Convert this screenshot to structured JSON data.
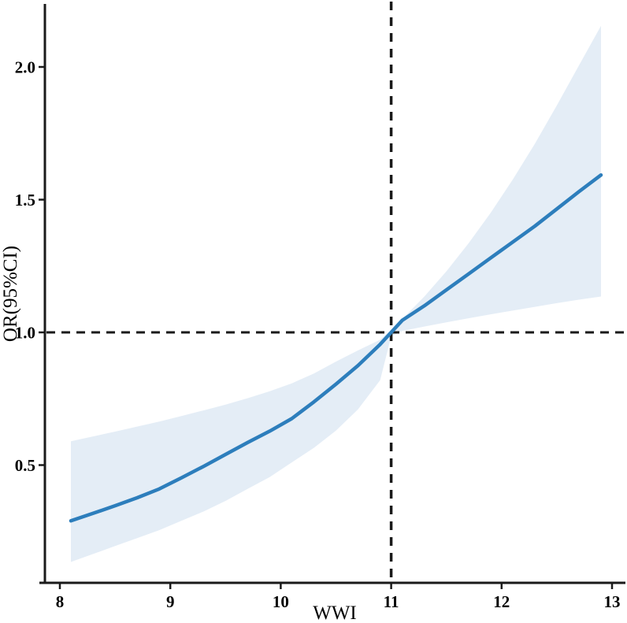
{
  "figure": {
    "background": "#ffffff",
    "description": "Restricted cubic spline plot of odds ratio with 95% confidence band versus WWI"
  },
  "chart_data": {
    "type": "line",
    "title": "",
    "xlabel": "WWI",
    "ylabel": "OR(95%CI)",
    "grid": false,
    "legend": "none",
    "xlim": [
      7.86,
      13.13
    ],
    "ylim": [
      0.05,
      2.25
    ],
    "x_ticks": [
      8,
      9,
      10,
      11,
      12,
      13
    ],
    "x_tick_labels": [
      "8",
      "9",
      "10",
      "11",
      "12",
      "13"
    ],
    "y_ticks": [
      0.5,
      1.0,
      1.5,
      2.0
    ],
    "y_tick_labels": [
      "0.5",
      "1.0",
      "1.5",
      "2.0"
    ],
    "reference_lines": {
      "vertical_x": 11,
      "horizontal_y": 1.0,
      "style": "dashed",
      "color": "#1a1a1a"
    },
    "x": [
      8.1,
      8.3,
      8.5,
      8.7,
      8.9,
      9.1,
      9.3,
      9.5,
      9.7,
      9.9,
      10.1,
      10.3,
      10.5,
      10.7,
      10.9,
      11.0,
      11.1,
      11.3,
      11.5,
      11.7,
      11.9,
      12.1,
      12.3,
      12.5,
      12.7,
      12.9
    ],
    "series": [
      {
        "name": "OR",
        "role": "center-line",
        "values": [
          0.29,
          0.318,
          0.347,
          0.377,
          0.41,
          0.452,
          0.495,
          0.54,
          0.585,
          0.628,
          0.675,
          0.738,
          0.805,
          0.875,
          0.955,
          1.0,
          1.045,
          1.1,
          1.16,
          1.22,
          1.28,
          1.34,
          1.4,
          1.465,
          1.53,
          1.593
        ]
      },
      {
        "name": "upper 95% CI",
        "role": "band-upper",
        "values": [
          0.59,
          0.608,
          0.626,
          0.645,
          0.664,
          0.685,
          0.706,
          0.728,
          0.752,
          0.778,
          0.808,
          0.845,
          0.89,
          0.932,
          0.972,
          1.01,
          1.05,
          1.135,
          1.23,
          1.335,
          1.45,
          1.575,
          1.71,
          1.855,
          2.005,
          2.155
        ]
      },
      {
        "name": "lower 95% CI",
        "role": "band-lower",
        "values": [
          0.135,
          0.165,
          0.195,
          0.225,
          0.255,
          0.29,
          0.325,
          0.365,
          0.41,
          0.455,
          0.51,
          0.565,
          0.63,
          0.71,
          0.82,
          0.985,
          1.005,
          1.022,
          1.038,
          1.053,
          1.068,
          1.082,
          1.096,
          1.11,
          1.123,
          1.135
        ]
      }
    ],
    "colors": {
      "line": "#2d7ebc",
      "band": "#e4edf6",
      "axis": "#1a1a1a",
      "dashed": "#1a1a1a"
    }
  }
}
